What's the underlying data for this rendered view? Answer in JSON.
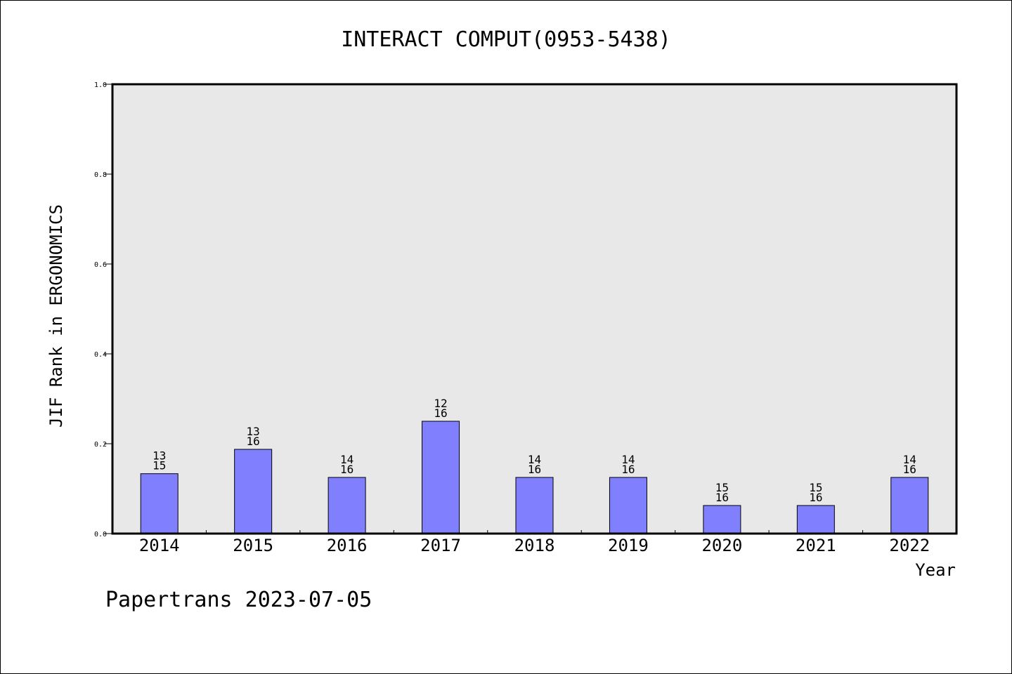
{
  "chart_data": {
    "type": "bar",
    "title": "INTERACT COMPUT(0953-5438)",
    "xlabel": "Year",
    "ylabel": "JIF Rank in ERGONOMICS",
    "categories": [
      "2014",
      "2015",
      "2016",
      "2017",
      "2018",
      "2019",
      "2020",
      "2021",
      "2022"
    ],
    "values": [
      0.1333,
      0.1875,
      0.125,
      0.25,
      0.125,
      0.125,
      0.0625,
      0.0625,
      0.125
    ],
    "ranks": [
      "13",
      "13",
      "14",
      "12",
      "14",
      "14",
      "15",
      "15",
      "14"
    ],
    "totals": [
      "15",
      "16",
      "16",
      "16",
      "16",
      "16",
      "16",
      "16",
      "16"
    ],
    "ylim": [
      0,
      1.0
    ],
    "yticks": [
      "0.0",
      "0.2",
      "0.4",
      "0.6",
      "0.8",
      "1.0"
    ],
    "grid": false,
    "colors": {
      "bar": "#8080ff",
      "plot_background": "#e8e8e8",
      "axis": "#000000"
    }
  },
  "footer": {
    "text": "Papertrans 2023-07-05"
  }
}
